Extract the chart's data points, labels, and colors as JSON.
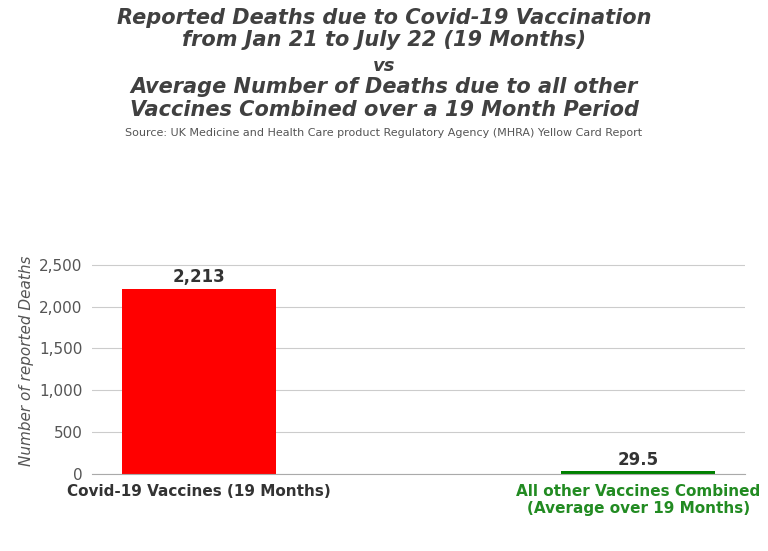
{
  "title_line1": "Reported Deaths due to Covid-19 Vaccination",
  "title_line2": "from Jan 21 to July 22 (19 Months)",
  "title_vs": "vs",
  "title_line3": "Average Number of Deaths due to all other",
  "title_line4": "Vaccines Combined over a 19 Month Period",
  "source": "Source: UK Medicine and Health Care product Regulatory Agency (MHRA) Yellow Card Report",
  "cat1": "Covid-19 Vaccines (19 Months)",
  "cat2": "All other Vaccines Combined\n(Average over 19 Months)",
  "values": [
    2213,
    29.5
  ],
  "bar_colors": [
    "#ff0000",
    "#008000"
  ],
  "value_labels": [
    "2,213",
    "29.5"
  ],
  "ylabel": "Number of reported Deaths",
  "ylim": [
    0,
    2700
  ],
  "yticks": [
    0,
    500,
    1000,
    1500,
    2000,
    2500
  ],
  "background_color": "#ffffff",
  "title_color": "#404040",
  "source_color": "#555555",
  "bar_width": 0.35,
  "cat1_color": "#333333",
  "cat2_color": "#228B22"
}
